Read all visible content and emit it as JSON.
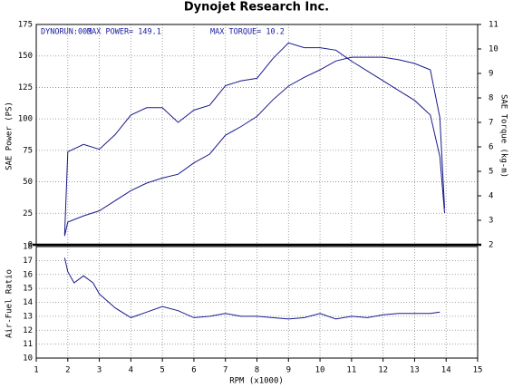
{
  "chart_data": [
    {
      "type": "line",
      "title": "Dynojet  Research  Inc.",
      "annotations": [
        "DYNORUN:003",
        "MAX POWER= 149.1",
        "MAX TORQUE= 10.2"
      ],
      "ylabel": "SAE Power (PS)",
      "y2label": "SAE Torque (kg-m)",
      "xlim": [
        1,
        15
      ],
      "xticks": [
        1,
        2,
        3,
        4,
        5,
        6,
        7,
        8,
        9,
        10,
        11,
        12,
        13,
        14,
        15
      ],
      "ylim": [
        0,
        175
      ],
      "yticks": [
        0,
        25,
        50,
        75,
        100,
        125,
        150,
        175
      ],
      "y2lim": [
        2,
        11
      ],
      "y2ticks": [
        2,
        3,
        4,
        5,
        6,
        7,
        8,
        9,
        10,
        11
      ],
      "grid": true,
      "x": [
        1.9,
        2,
        2.5,
        3,
        3.5,
        4,
        4.5,
        5,
        5.5,
        6,
        6.5,
        7,
        7.5,
        8,
        8.5,
        9,
        9.5,
        10,
        10.5,
        11,
        11.5,
        12,
        12.5,
        13,
        13.5,
        13.8,
        13.95
      ],
      "series": [
        {
          "name": "SAE Power",
          "color": "#1a1a8c",
          "values": [
            7,
            18,
            23,
            27,
            35,
            43,
            49,
            53,
            56,
            65,
            72,
            87,
            94,
            102,
            115,
            126,
            133,
            139,
            146,
            149,
            149,
            149,
            147,
            144,
            139,
            101,
            29
          ]
        },
        {
          "name": "SAE Torque",
          "color": "#1a1a8c",
          "axis": "y2",
          "values": [
            2.4,
            5.8,
            6.1,
            5.9,
            6.5,
            7.3,
            7.6,
            7.6,
            7.0,
            7.5,
            7.7,
            8.5,
            8.7,
            8.8,
            9.6,
            10.25,
            10.05,
            10.05,
            9.95,
            9.5,
            9.1,
            8.7,
            8.3,
            7.9,
            7.3,
            5.6,
            3.3
          ]
        }
      ]
    },
    {
      "type": "line",
      "ylabel": "Air-Fuel Ratio",
      "xlabel": "RPM (x1000)",
      "xlim": [
        1,
        15
      ],
      "xticks": [
        1,
        2,
        3,
        4,
        5,
        6,
        7,
        8,
        9,
        10,
        11,
        12,
        13,
        14,
        15
      ],
      "ylim": [
        10,
        18
      ],
      "yticks": [
        10,
        11,
        12,
        13,
        14,
        15,
        16,
        17,
        18
      ],
      "grid": true,
      "x": [
        1.9,
        2,
        2.2,
        2.5,
        2.8,
        3,
        3.5,
        4,
        4.5,
        5,
        5.5,
        6,
        6.5,
        7,
        7.5,
        8,
        8.5,
        9,
        9.5,
        10,
        10.5,
        11,
        11.5,
        12,
        12.5,
        13,
        13.5,
        13.8
      ],
      "series": [
        {
          "name": "Air-Fuel Ratio",
          "color": "#1a1a8c",
          "values": [
            17.2,
            16.2,
            15.4,
            15.9,
            15.4,
            14.6,
            13.6,
            12.9,
            13.3,
            13.7,
            13.4,
            12.9,
            13.0,
            13.2,
            13.0,
            13.0,
            12.9,
            12.8,
            12.9,
            13.2,
            12.8,
            13.0,
            12.9,
            13.1,
            13.2,
            13.2,
            13.2,
            13.3
          ]
        }
      ]
    }
  ]
}
